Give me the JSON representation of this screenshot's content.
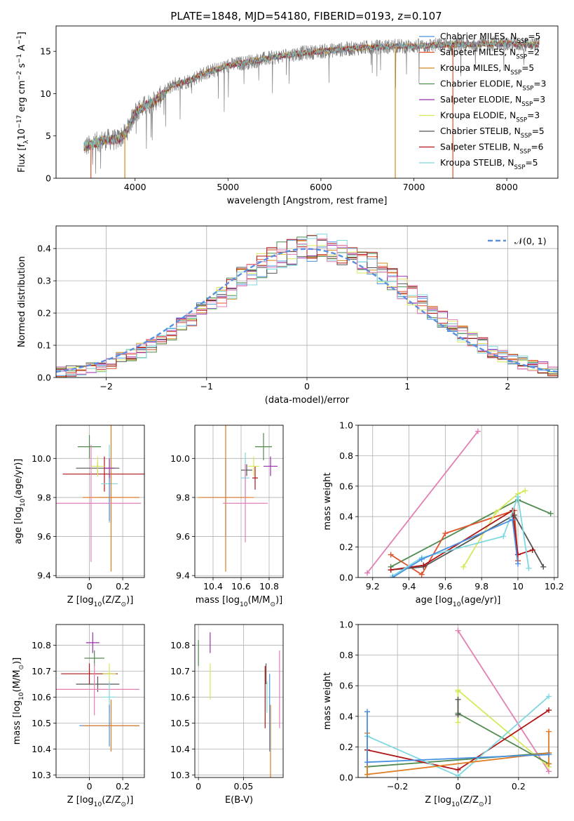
{
  "figure_title": "PLATE=1848, MJD=54180, FIBERID=0193, z=0.107",
  "colors": {
    "Chabrier MILES": "#4a90e2",
    "Salpeter MILES": "#e0532b",
    "Kroupa MILES": "#d08a1c",
    "Chabrier ELODIE": "#4f8a4f",
    "Salpeter ELODIE": "#9b2fae",
    "Kroupa ELODIE": "#d6e85a",
    "Chabrier STELIB": "#555555",
    "Salpeter STELIB": "#b01414",
    "Kroupa STELIB": "#7fd8e0",
    "pink": "#e37fb4",
    "orange": "#e07c22",
    "normal": "#5b8fe0",
    "grid": "#b0b0b0",
    "spectrum_gray": "#7f7f7f"
  },
  "chart_data": [
    {
      "id": "spectrum",
      "type": "line",
      "xlabel": "wavelength [Angstrom, rest frame]",
      "ylabel": "Flux [f_λ10^-17 erg cm^-2 s^-1 A^-1]",
      "xlim": [
        3150,
        8550
      ],
      "ylim": [
        0,
        18
      ],
      "xticks": [
        4000,
        5000,
        6000,
        7000,
        8000
      ],
      "yticks": [
        0,
        5,
        10,
        15
      ],
      "grid": false,
      "legend_position": "upper right",
      "legend": [
        {
          "label": "Chabrier MILES, N_SSP=5",
          "color_key": "Chabrier MILES"
        },
        {
          "label": "Salpeter MILES, N_SSP=2",
          "color_key": "Salpeter MILES"
        },
        {
          "label": "Kroupa MILES, N_SSP=5",
          "color_key": "Kroupa MILES"
        },
        {
          "label": "Chabrier ELODIE, N_SSP=3",
          "color_key": "Chabrier ELODIE"
        },
        {
          "label": "Salpeter ELODIE, N_SSP=3",
          "color_key": "Salpeter ELODIE"
        },
        {
          "label": "Kroupa ELODIE, N_SSP=3",
          "color_key": "Kroupa ELODIE"
        },
        {
          "label": "Chabrier STELIB, N_SSP=5",
          "color_key": "Chabrier STELIB"
        },
        {
          "label": "Salpeter STELIB, N_SSP=6",
          "color_key": "Salpeter STELIB"
        },
        {
          "label": "Kroupa STELIB, N_SSP=5",
          "color_key": "Kroupa STELIB"
        }
      ],
      "continuum": {
        "wavelength": [
          3500,
          3600,
          3700,
          3800,
          3900,
          4000,
          4100,
          4200,
          4300,
          4400,
          4500,
          4600,
          4700,
          4800,
          4900,
          5000,
          5200,
          5400,
          5600,
          5800,
          6000,
          6200,
          6400,
          6600,
          6800,
          7000,
          7200,
          7400,
          7600,
          7800,
          8000,
          8200,
          8350
        ],
        "flux": [
          3.8,
          4.3,
          4.6,
          4.5,
          5.3,
          7.8,
          8.5,
          9.0,
          9.9,
          11.0,
          11.3,
          11.6,
          12.2,
          12.6,
          12.9,
          13.3,
          13.7,
          14.1,
          14.5,
          14.8,
          15.0,
          15.2,
          15.4,
          15.5,
          15.6,
          15.6,
          15.7,
          15.8,
          15.8,
          15.9,
          15.9,
          15.8,
          15.8
        ]
      },
      "dips": [
        {
          "wavelength": 3525,
          "flux": 0,
          "series": "Salpeter MILES"
        },
        {
          "wavelength": 3890,
          "flux": 0,
          "series": "Kroupa MILES"
        },
        {
          "wavelength": 6800,
          "flux": 0,
          "series": "Kroupa MILES"
        },
        {
          "wavelength": 7420,
          "flux": 0,
          "series": "Salpeter MILES"
        }
      ]
    },
    {
      "id": "residuals",
      "type": "line",
      "xlabel": "(data-model)/error",
      "ylabel": "Normed distribution",
      "xlim": [
        -2.5,
        2.5
      ],
      "ylim": [
        0,
        0.47
      ],
      "xticks": [
        -2,
        -1,
        0,
        1,
        2
      ],
      "yticks": [
        0.0,
        0.1,
        0.2,
        0.3,
        0.4
      ],
      "grid": true,
      "legend_position": "upper right",
      "legend": [
        {
          "label": "𝒩(0, 1)",
          "color_key": "normal",
          "style": "dashed"
        }
      ],
      "bin_width": 0.1
    },
    {
      "id": "age_vs_Z",
      "type": "scatter",
      "xlabel": "Z [log10(Z/Z⊙)]",
      "ylabel": "age [log10(age/yr)]",
      "xlim": [
        -0.2,
        0.33
      ],
      "ylim": [
        9.39,
        10.17
      ],
      "xticks": [
        0.0,
        0.2
      ],
      "yticks": [
        9.4,
        9.6,
        9.8,
        10.0
      ],
      "grid": true,
      "points": [
        {
          "color_key": "Chabrier ELODIE",
          "x": 0.0,
          "y": 10.06,
          "xerr": 0.07,
          "yerr": 0.06
        },
        {
          "color_key": "Chabrier STELIB",
          "x": 0.05,
          "y": 9.95,
          "xerr": 0.13,
          "yerr": 0.03
        },
        {
          "color_key": "Salpeter STELIB",
          "x": 0.09,
          "y": 9.92,
          "xerr": 0.25,
          "yerr": 0.09
        },
        {
          "color_key": "Kroupa STELIB",
          "x": 0.12,
          "y": 9.87,
          "xerr": 0.05,
          "yerr": 0.2
        },
        {
          "color_key": "Chabrier MILES",
          "x": 0.12,
          "y": 9.8,
          "xerr": 0.07,
          "yerr": 0.12
        },
        {
          "color_key": "Salpeter MILES",
          "x": 0.13,
          "y": 9.8,
          "xerr": 0.17,
          "yerr": 0.13
        },
        {
          "color_key": "orange",
          "x": 0.13,
          "y": 9.8,
          "xerr": 0.17,
          "yerr": 0.38
        },
        {
          "color_key": "pink",
          "x": 0.01,
          "y": 9.77,
          "xerr": 0.3,
          "yerr": 0.3
        },
        {
          "color_key": "Kroupa ELODIE",
          "x": 0.05,
          "y": 9.96,
          "xerr": 0.04,
          "yerr": 0.05
        },
        {
          "color_key": "Salpeter ELODIE",
          "x": 0.12,
          "y": 9.95,
          "xerr": 0.03,
          "yerr": 0.05
        }
      ]
    },
    {
      "id": "age_vs_mass",
      "type": "scatter",
      "xlabel": "mass [log10(M/M⊙)]",
      "ylabel": "",
      "xlim": [
        10.27,
        10.9
      ],
      "ylim": [
        9.39,
        10.17
      ],
      "xticks": [
        10.4,
        10.6,
        10.8
      ],
      "yticks": [
        9.4,
        9.6,
        9.8,
        10.0
      ],
      "grid": true,
      "points": [
        {
          "color_key": "Chabrier ELODIE",
          "x": 10.76,
          "y": 10.06,
          "xerr": 0.06,
          "yerr": 0.07
        },
        {
          "color_key": "Chabrier STELIB",
          "x": 10.64,
          "y": 9.94,
          "xerr": 0.04,
          "yerr": 0.03
        },
        {
          "color_key": "Salpeter STELIB",
          "x": 10.7,
          "y": 9.9,
          "xerr": 0.02,
          "yerr": 0.06
        },
        {
          "color_key": "Salpeter ELODIE",
          "x": 10.81,
          "y": 9.96,
          "xerr": 0.05,
          "yerr": 0.05
        },
        {
          "color_key": "Kroupa ELODIE",
          "x": 10.69,
          "y": 9.96,
          "xerr": 0.04,
          "yerr": 0.05
        },
        {
          "color_key": "Kroupa STELIB",
          "x": 10.63,
          "y": 9.9,
          "xerr": 0.03,
          "yerr": 0.13
        },
        {
          "color_key": "Chabrier MILES",
          "x": 10.49,
          "y": 9.8,
          "xerr": 0.17,
          "yerr": 0.2
        },
        {
          "color_key": "orange",
          "x": 10.49,
          "y": 9.8,
          "xerr": 0.2,
          "yerr": 0.38
        },
        {
          "color_key": "pink",
          "x": 10.63,
          "y": 9.77,
          "xerr": 0.16,
          "yerr": 0.2
        }
      ]
    },
    {
      "id": "weight_vs_age",
      "type": "line",
      "xlabel": "age [log10(age/yr)]",
      "ylabel": "mass weight",
      "xlim": [
        9.12,
        10.22
      ],
      "ylim": [
        0,
        1.0
      ],
      "xticks": [
        9.2,
        9.4,
        9.6,
        9.8,
        10.0,
        10.2
      ],
      "yticks": [
        0.0,
        0.2,
        0.4,
        0.6,
        0.8,
        1.0
      ],
      "grid": true,
      "series": [
        {
          "color_key": "pink",
          "x": [
            9.17,
            9.78
          ],
          "y": [
            0.03,
            0.96
          ]
        },
        {
          "color_key": "Chabrier ELODIE",
          "x": [
            9.3,
            10.0,
            10.18
          ],
          "y": [
            0.07,
            0.51,
            0.42
          ]
        },
        {
          "color_key": "Salpeter MILES",
          "x": [
            9.3,
            9.47,
            9.6,
            9.98,
            10.0
          ],
          "y": [
            0.15,
            0.02,
            0.29,
            0.44,
            0.11
          ]
        },
        {
          "color_key": "Kroupa ELODIE",
          "x": [
            9.7,
            9.88,
            10.0,
            10.04
          ],
          "y": [
            0.07,
            0.43,
            0.55,
            0.57
          ]
        },
        {
          "color_key": "Chabrier STELIB",
          "x": [
            9.3,
            9.48,
            9.98,
            10.14
          ],
          "y": [
            0.05,
            0.07,
            0.41,
            0.07
          ]
        },
        {
          "color_key": "Salpeter STELIB",
          "x": [
            9.3,
            9.48,
            9.97,
            10.0,
            10.08
          ],
          "y": [
            0.05,
            0.08,
            0.44,
            0.15,
            0.18
          ]
        },
        {
          "color_key": "Kroupa STELIB",
          "x": [
            9.31,
            9.47,
            9.92,
            10.0,
            10.06
          ],
          "y": [
            0.01,
            0.13,
            0.27,
            0.53,
            0.06
          ]
        },
        {
          "color_key": "Chabrier MILES",
          "x": [
            9.31,
            9.47,
            9.97,
            10.0
          ],
          "y": [
            0.0,
            0.12,
            0.38,
            0.09
          ]
        }
      ]
    },
    {
      "id": "mass_vs_Z",
      "type": "scatter",
      "xlabel": "Z [log10(Z/Z⊙)]",
      "ylabel": "mass [log10(M/M⊙)]",
      "xlim": [
        -0.2,
        0.33
      ],
      "ylim": [
        10.29,
        10.88
      ],
      "xticks": [
        0.0,
        0.2
      ],
      "yticks": [
        10.3,
        10.4,
        10.5,
        10.6,
        10.7,
        10.8
      ],
      "grid": true,
      "points": [
        {
          "color_key": "Salpeter ELODIE",
          "x": 0.02,
          "y": 10.81,
          "xerr": 0.04,
          "yerr": 0.04
        },
        {
          "color_key": "Chabrier ELODIE",
          "x": 0.03,
          "y": 10.75,
          "xerr": 0.06,
          "yerr": 0.03
        },
        {
          "color_key": "Salpeter STELIB",
          "x": 0.0,
          "y": 10.69,
          "xerr": 0.17,
          "yerr": 0.04
        },
        {
          "color_key": "Kroupa ELODIE",
          "x": 0.12,
          "y": 10.69,
          "xerr": 0.04,
          "yerr": 0.04
        },
        {
          "color_key": "Chabrier STELIB",
          "x": 0.05,
          "y": 10.65,
          "xerr": 0.13,
          "yerr": 0.03
        },
        {
          "color_key": "pink",
          "x": 0.03,
          "y": 10.63,
          "xerr": 0.27,
          "yerr": 0.1
        },
        {
          "color_key": "Kroupa STELIB",
          "x": 0.12,
          "y": 10.6,
          "xerr": 0.04,
          "yerr": 0.06
        },
        {
          "color_key": "Chabrier MILES",
          "x": 0.12,
          "y": 10.49,
          "xerr": 0.18,
          "yerr": 0.08
        },
        {
          "color_key": "orange",
          "x": 0.13,
          "y": 10.49,
          "xerr": 0.17,
          "yerr": 0.1
        }
      ]
    },
    {
      "id": "mass_vs_ebv",
      "type": "scatter",
      "xlabel": "E(B-V)",
      "ylabel": "",
      "xlim": [
        -0.004,
        0.094
      ],
      "ylim": [
        10.29,
        10.88
      ],
      "xticks": [
        0.0,
        0.05
      ],
      "yticks": [
        10.3,
        10.4,
        10.5,
        10.6,
        10.7,
        10.8
      ],
      "grid": true,
      "points": [
        {
          "color_key": "Chabrier ELODIE",
          "x": 0.0,
          "y": 10.77,
          "xerr": 0,
          "yerr": 0.05
        },
        {
          "color_key": "Salpeter ELODIE",
          "x": 0.013,
          "y": 10.81,
          "xerr": 0,
          "yerr": 0.04
        },
        {
          "color_key": "Kroupa ELODIE",
          "x": 0.013,
          "y": 10.66,
          "xerr": 0,
          "yerr": 0.07
        },
        {
          "color_key": "Chabrier STELIB",
          "x": 0.075,
          "y": 10.69,
          "xerr": 0,
          "yerr": 0.04
        },
        {
          "color_key": "Kroupa STELIB",
          "x": 0.076,
          "y": 10.6,
          "xerr": 0,
          "yerr": 0.06
        },
        {
          "color_key": "Salpeter STELIB",
          "x": 0.074,
          "y": 10.6,
          "xerr": 0,
          "yerr": 0.12
        },
        {
          "color_key": "Chabrier MILES",
          "x": 0.079,
          "y": 10.54,
          "xerr": 0,
          "yerr": 0.15
        },
        {
          "color_key": "orange",
          "x": 0.08,
          "y": 10.43,
          "xerr": 0,
          "yerr": 0.14
        },
        {
          "color_key": "pink",
          "x": 0.09,
          "y": 10.63,
          "xerr": 0,
          "yerr": 0.15
        }
      ]
    },
    {
      "id": "weight_vs_Z",
      "type": "line",
      "xlabel": "Z [log10(Z/Z⊙)]",
      "ylabel": "mass weight",
      "xlim": [
        -0.33,
        0.33
      ],
      "ylim": [
        0,
        1.0
      ],
      "xticks": [
        -0.2,
        0.0,
        0.2
      ],
      "yticks": [
        0.0,
        0.2,
        0.4,
        0.6,
        0.8,
        1.0
      ],
      "grid": true,
      "series": [
        {
          "color_key": "pink",
          "x": [
            0.0,
            0.3
          ],
          "y": [
            0.96,
            0.04
          ]
        },
        {
          "color_key": "Kroupa ELODIE",
          "x": [
            0.0,
            0.3
          ],
          "y": [
            0.57,
            0.07
          ]
        },
        {
          "color_key": "Kroupa ELODIE",
          "x": [
            0.0,
            0.0
          ],
          "y": [
            0.36,
            0.56
          ]
        },
        {
          "color_key": "Chabrier ELODIE",
          "x": [
            0.0,
            0.3
          ],
          "y": [
            0.42,
            0.09
          ]
        },
        {
          "color_key": "Chabrier ELODIE",
          "x": [
            -0.3,
            0.3
          ],
          "y": [
            0.07,
            0.16
          ]
        },
        {
          "color_key": "Chabrier STELIB",
          "x": [
            0.0,
            0.0
          ],
          "y": [
            0.51,
            0.41
          ]
        },
        {
          "color_key": "Salpeter STELIB",
          "x": [
            -0.3,
            0.0,
            0.3
          ],
          "y": [
            0.18,
            0.05,
            0.44
          ]
        },
        {
          "color_key": "Kroupa STELIB",
          "x": [
            -0.3,
            0.0,
            0.3
          ],
          "y": [
            0.27,
            0.01,
            0.53
          ]
        },
        {
          "color_key": "Kroupa STELIB",
          "x": [
            -0.3,
            -0.3
          ],
          "y": [
            0.27,
            0.02
          ]
        },
        {
          "color_key": "orange",
          "x": [
            -0.3,
            0.3
          ],
          "y": [
            0.02,
            0.16
          ]
        },
        {
          "color_key": "orange",
          "x": [
            -0.3,
            -0.3
          ],
          "y": [
            0.02,
            0.29
          ]
        },
        {
          "color_key": "orange",
          "x": [
            0.3,
            0.3
          ],
          "y": [
            0.3,
            0.09
          ]
        },
        {
          "color_key": "Chabrier MILES",
          "x": [
            -0.3,
            -0.3
          ],
          "y": [
            0.43,
            0.1
          ]
        },
        {
          "color_key": "Chabrier MILES",
          "x": [
            -0.3,
            0.3
          ],
          "y": [
            0.1,
            0.15
          ]
        }
      ]
    }
  ]
}
